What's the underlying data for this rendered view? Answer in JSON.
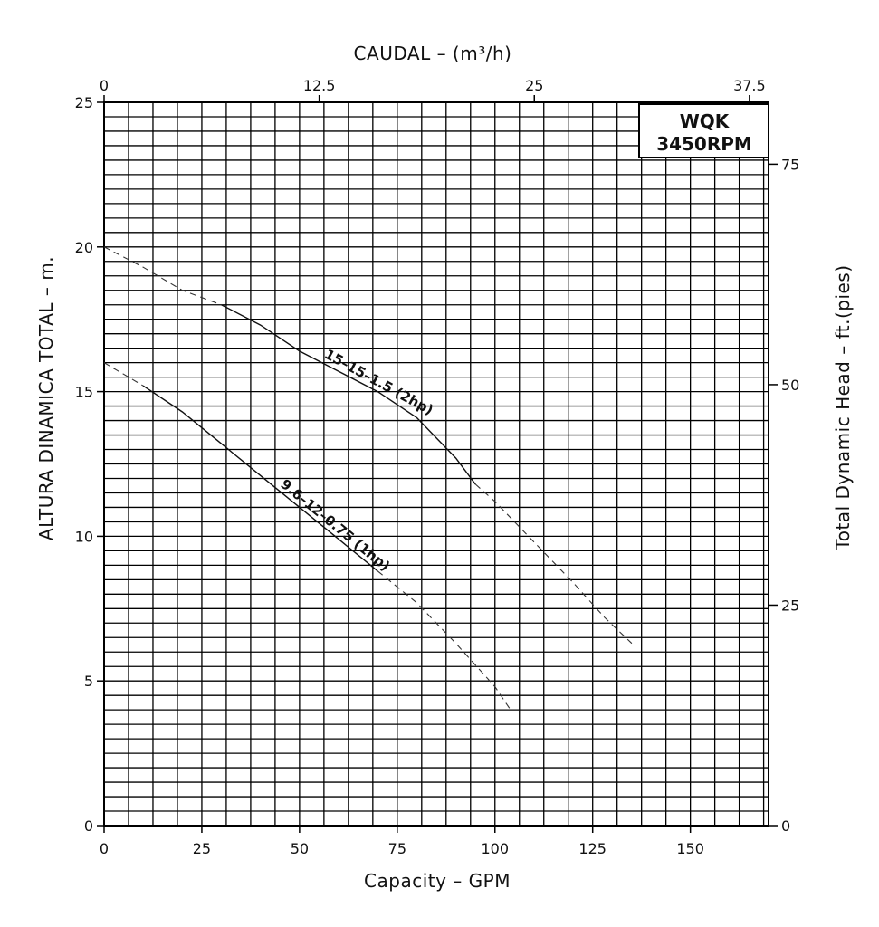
{
  "chart_data": {
    "type": "line",
    "top_axis": {
      "label": "CAUDAL  –  (m³/h)",
      "ticks": [
        {
          "value": 0,
          "label": "0"
        },
        {
          "value": 12.5,
          "label": "12.5"
        },
        {
          "value": 25,
          "label": "25"
        },
        {
          "value": 37.5,
          "label": "37.5"
        }
      ]
    },
    "bottom_axis": {
      "label": "Capacity  –  GPM",
      "range": [
        0,
        170
      ],
      "ticks": [
        {
          "value": 0,
          "label": "0"
        },
        {
          "value": 25,
          "label": "25"
        },
        {
          "value": 50,
          "label": "50"
        },
        {
          "value": 75,
          "label": "75"
        },
        {
          "value": 100,
          "label": "100"
        },
        {
          "value": 125,
          "label": "125"
        },
        {
          "value": 150,
          "label": "150"
        }
      ]
    },
    "left_axis": {
      "label": "ALTURA DINAMICA TOTAL  –  m.",
      "range": [
        0,
        25
      ],
      "ticks": [
        {
          "value": 0,
          "label": "0"
        },
        {
          "value": 5,
          "label": "5"
        },
        {
          "value": 10,
          "label": "10"
        },
        {
          "value": 15,
          "label": "15"
        },
        {
          "value": 20,
          "label": "20"
        },
        {
          "value": 25,
          "label": "25"
        }
      ]
    },
    "right_axis": {
      "label": "Total Dynamic Head  –  ft.(pies)",
      "ticks": [
        {
          "value": 0,
          "label": "0"
        },
        {
          "value": 25,
          "label": "25"
        },
        {
          "value": 50,
          "label": "50"
        },
        {
          "value": 75,
          "label": "75"
        }
      ]
    },
    "grid": true,
    "badge": [
      "WQK",
      "3450RPM"
    ],
    "series": [
      {
        "name": "15–15–1.5 (2hp)",
        "points": [
          [
            0,
            20.0
          ],
          [
            10,
            19.3
          ],
          [
            20,
            18.5
          ],
          [
            30,
            18.0
          ],
          [
            40,
            17.3
          ],
          [
            50,
            16.4
          ],
          [
            60,
            15.7
          ],
          [
            70,
            15.0
          ],
          [
            80,
            14.1
          ],
          [
            90,
            12.7
          ],
          [
            95,
            11.8
          ],
          [
            100,
            11.2
          ],
          [
            110,
            9.8
          ],
          [
            120,
            8.4
          ],
          [
            128,
            7.2
          ],
          [
            135,
            6.3
          ]
        ],
        "solid_range": [
          30,
          95
        ]
      },
      {
        "name": "9.6–12–0.75 (1hp)",
        "points": [
          [
            0,
            16.0
          ],
          [
            10,
            15.2
          ],
          [
            20,
            14.3
          ],
          [
            30,
            13.2
          ],
          [
            40,
            12.1
          ],
          [
            50,
            11.0
          ],
          [
            60,
            9.9
          ],
          [
            70,
            8.8
          ],
          [
            80,
            7.7
          ],
          [
            90,
            6.3
          ],
          [
            100,
            4.8
          ],
          [
            104,
            4.0
          ]
        ],
        "solid_range": [
          10,
          70
        ]
      }
    ]
  }
}
